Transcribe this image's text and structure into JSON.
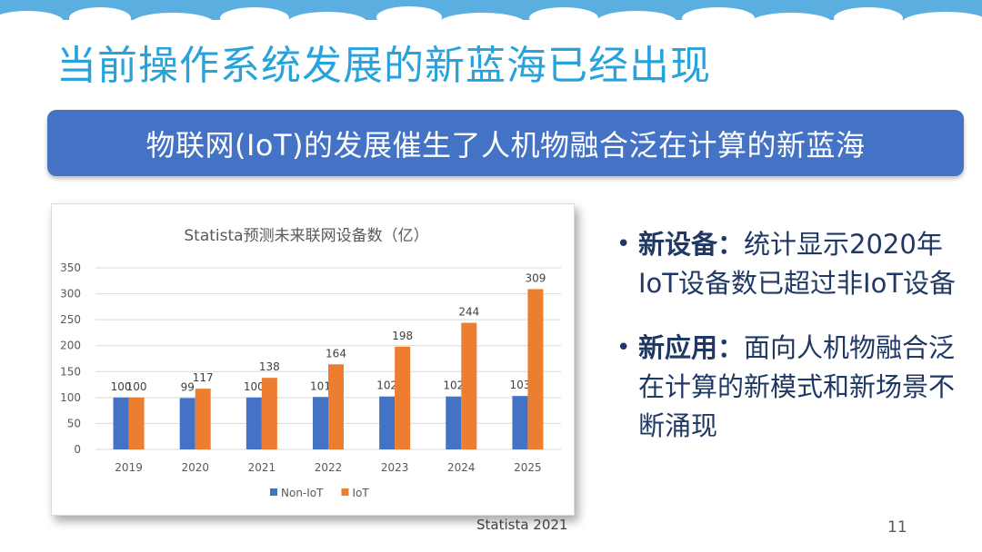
{
  "slide": {
    "title": "当前操作系统发展的新蓝海已经出现",
    "banner": "物联网(IoT)的发展催生了人机物融合泛在计算的新蓝海",
    "source": "Statista 2021",
    "page_number": "11"
  },
  "bullets": [
    {
      "head": "新设备：",
      "body": "统计显示2020年IoT设备数已超过非IoT设备"
    },
    {
      "head": "新应用：",
      "body": "面向人机物融合泛在计算的新模式和新场景不断涌现"
    }
  ],
  "colors": {
    "title": "#27a3dc",
    "banner_bg": "#4472c4",
    "non_iot": "#4472c4",
    "iot": "#ed7d31",
    "bullet_text": "#1f3864"
  },
  "chart_data": {
    "type": "bar",
    "title": "Statista预测未来联网设备数（亿）",
    "categories": [
      "2019",
      "2020",
      "2021",
      "2022",
      "2023",
      "2024",
      "2025"
    ],
    "series": [
      {
        "name": "Non-IoT",
        "values": [
          100,
          99,
          100,
          101,
          102,
          102,
          103
        ]
      },
      {
        "name": "IoT",
        "values": [
          100,
          117,
          138,
          164,
          198,
          244,
          309
        ]
      }
    ],
    "ylim": [
      0,
      350
    ],
    "yticks": [
      0,
      50,
      100,
      150,
      200,
      250,
      300,
      350
    ],
    "grid": true,
    "legend_position": "bottom"
  }
}
